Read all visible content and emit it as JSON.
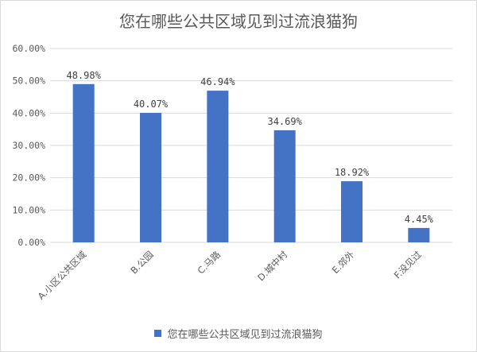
{
  "chart_data": {
    "type": "bar",
    "title": "您在哪些公共区域见到过流浪猫狗",
    "categories": [
      "A.小区公共区域",
      "B.公园",
      "C.马路",
      "D.城中村",
      "E.郊外",
      "F.没见过"
    ],
    "series": [
      {
        "name": "您在哪些公共区域见到过流浪猫狗",
        "values": [
          48.98,
          40.07,
          46.94,
          34.69,
          18.92,
          4.45
        ],
        "labels": [
          "48.98%",
          "40.07%",
          "46.94%",
          "34.69%",
          "18.92%",
          "4.45%"
        ]
      }
    ],
    "ylim": [
      0,
      60
    ],
    "yticks": [
      "0.00%",
      "10.00%",
      "20.00%",
      "30.00%",
      "40.00%",
      "50.00%",
      "60.00%"
    ],
    "grid": true,
    "legend": "bottom",
    "colors": {
      "bar": "#4472c4",
      "grid": "#d9d9d9",
      "text": "#595959"
    }
  }
}
